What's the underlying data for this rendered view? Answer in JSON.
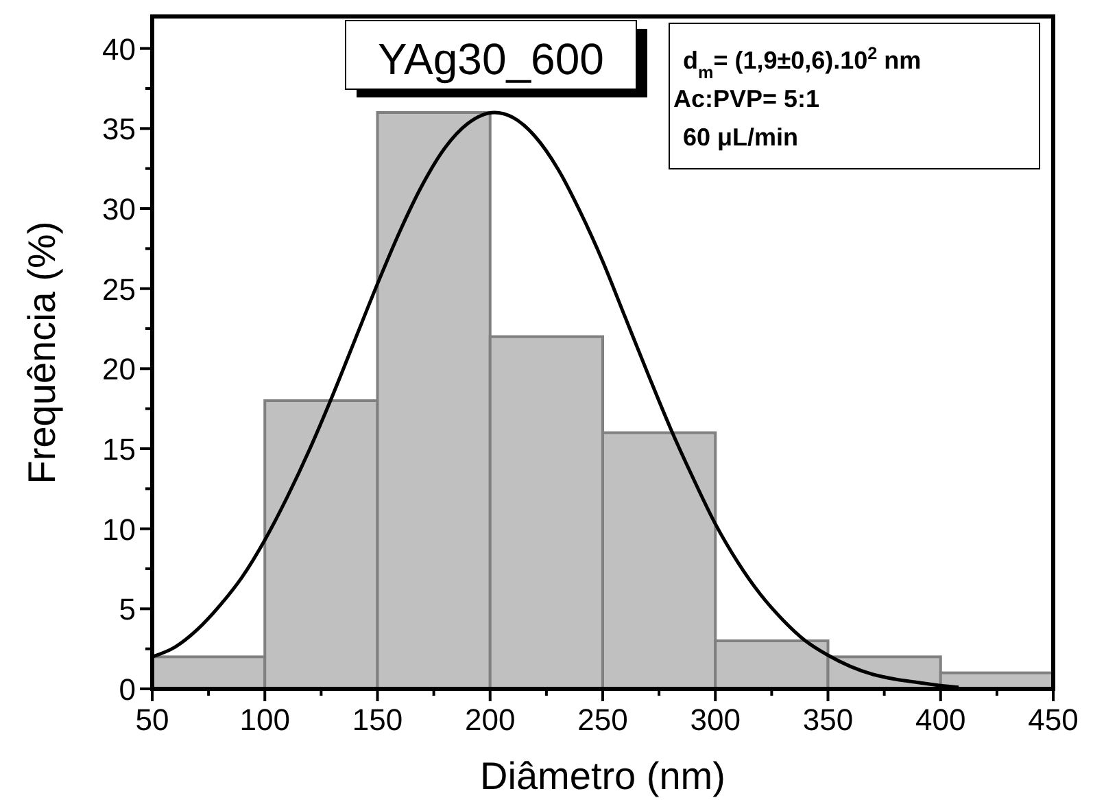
{
  "chart_data": {
    "type": "histogram",
    "title": "YAg30_600",
    "xlabel": "Diâmetro (nm)",
    "ylabel": "Frequência (%)",
    "annotations": [
      "d$_{m}$= (1,9±0,6).10$^{2}$ nm",
      "Ac:PVP= 5:1",
      "60 μL/min"
    ],
    "series": [
      {
        "type": "histogram",
        "bins": [
          50,
          100,
          150,
          200,
          250,
          300,
          350,
          400,
          450
        ],
        "values": [
          2,
          18,
          36,
          22,
          16,
          3,
          2,
          1
        ],
        "color": "#c0c0c0"
      },
      {
        "type": "line",
        "color": "#000000",
        "x": [
          50,
          60,
          70,
          80,
          90,
          100,
          110,
          120,
          130,
          140,
          150,
          160,
          170,
          180,
          190,
          202,
          210,
          220,
          230,
          240,
          250,
          260,
          270,
          280,
          290,
          300,
          310,
          320,
          330,
          340,
          350,
          360,
          370,
          380,
          390,
          400,
          408
        ],
        "values": [
          2.0,
          2.6,
          3.7,
          5.2,
          7.0,
          9.3,
          12.0,
          15.0,
          18.3,
          21.8,
          25.3,
          28.6,
          31.5,
          33.8,
          35.3,
          36,
          35.7,
          34.5,
          32.5,
          29.8,
          26.7,
          23.2,
          19.7,
          16.3,
          13.2,
          10.3,
          7.9,
          5.9,
          4.3,
          3.0,
          2.1,
          1.4,
          0.9,
          0.6,
          0.4,
          0.2,
          0.1
        ]
      }
    ],
    "xlim": [
      50,
      450
    ],
    "ylim": [
      0,
      42
    ],
    "xticks": [
      50,
      {
        "value": 75,
        "label": null
      },
      100,
      {
        "value": 125,
        "label": null
      },
      150,
      {
        "value": 175,
        "label": null
      },
      200,
      {
        "value": 225,
        "label": null
      },
      250,
      {
        "value": 275,
        "label": null
      },
      300,
      {
        "value": 325,
        "label": null
      },
      350,
      {
        "value": 375,
        "label": null
      },
      400,
      {
        "value": 425,
        "label": null
      },
      450
    ],
    "yticks": [
      0,
      {
        "value": 2.5,
        "label": null
      },
      5,
      {
        "value": 7.5,
        "label": null
      },
      10,
      {
        "value": 12.5,
        "label": null
      },
      15,
      {
        "value": 17.5,
        "label": null
      },
      20,
      {
        "value": 22.5,
        "label": null
      },
      25,
      {
        "value": 27.5,
        "label": null
      },
      30,
      {
        "value": 32.5,
        "label": null
      },
      35,
      {
        "value": 37.5,
        "label": null
      },
      40
    ],
    "grid": false,
    "line_style": "solid",
    "marker": "none"
  }
}
